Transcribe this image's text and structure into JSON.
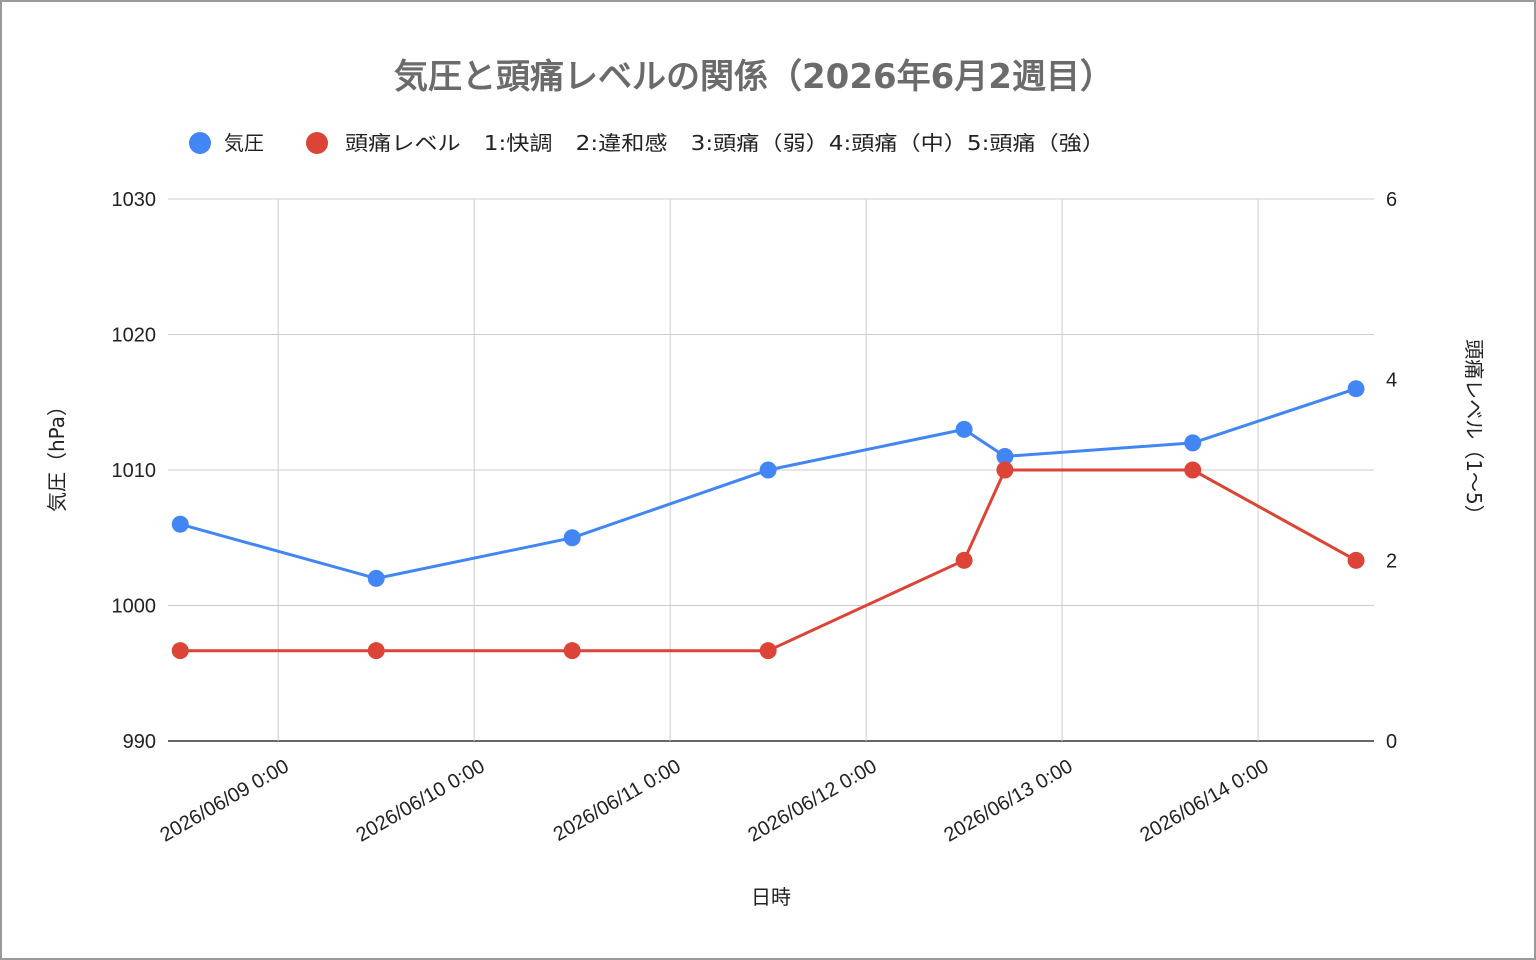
{
  "chart_data": {
    "type": "line",
    "title": "気圧と頭痛レベルの関係（2026年6月2週目）",
    "xlabel": "日時",
    "ylabel_left": "気圧（hPa）",
    "ylabel_right": "頭痛レベル（1〜5）",
    "x_ticks": [
      "2026/06/09 0:00",
      "2026/06/10 0:00",
      "2026/06/11 0:00",
      "2026/06/12 0:00",
      "2026/06/13 0:00",
      "2026/06/14 0:00"
    ],
    "x_tick_hours": [
      0,
      24,
      48,
      72,
      96,
      120
    ],
    "x_range_hours": [
      -13.5,
      134.2
    ],
    "y_left": {
      "ylim": [
        990,
        1030
      ],
      "ticks": [
        "990",
        "1000",
        "1010",
        "1020",
        "1030"
      ]
    },
    "y_right": {
      "ylim": [
        0,
        6
      ],
      "ticks": [
        "0",
        "2",
        "4",
        "6"
      ]
    },
    "grid": true,
    "legend_position": "top",
    "series": [
      {
        "name": "気圧",
        "axis": "left",
        "color": "#4285f4",
        "x_hours": [
          -12,
          12,
          36,
          60,
          84,
          89,
          112,
          132
        ],
        "values": [
          1006,
          1002,
          1005,
          1010,
          1013,
          1011,
          1012,
          1016
        ]
      },
      {
        "name": "頭痛レベル　1:快調　2:違和感　3:頭痛（弱）4:頭痛（中）5:頭痛（強）",
        "axis": "right",
        "color": "#db4437",
        "x_hours": [
          -12,
          12,
          36,
          60,
          84,
          89,
          112,
          132
        ],
        "values": [
          1,
          1,
          1,
          1,
          2,
          3,
          3,
          2
        ]
      }
    ]
  }
}
